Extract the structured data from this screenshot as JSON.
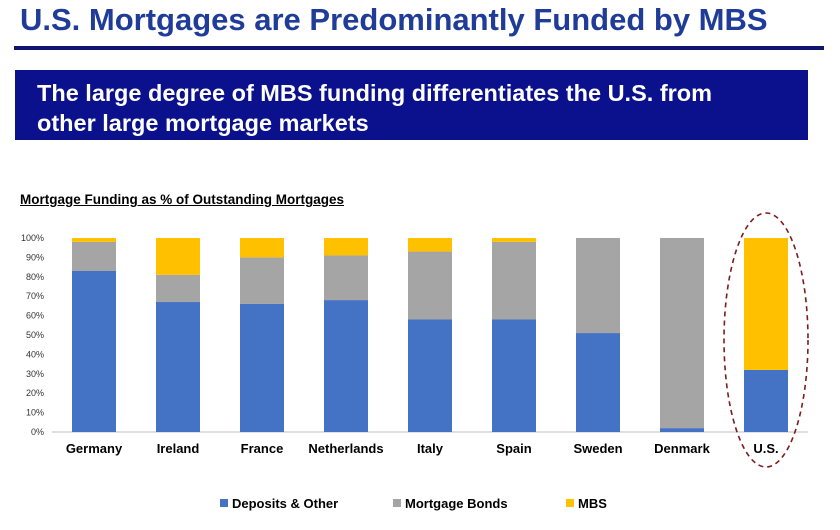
{
  "slide": {
    "title": "U.S. Mortgages are Predominantly Funded by MBS",
    "banner_line1": "The large degree of MBS funding differentiates the U.S. from",
    "banner_line2": "other large mortgage markets"
  },
  "colors": {
    "title": "#1f3c99",
    "banner_bg": "#0b118c",
    "deposits": "#4472c4",
    "bonds": "#a5a5a5",
    "mbs": "#ffc000",
    "highlight": "#7b1d1d"
  },
  "chart_data": {
    "type": "bar",
    "stacked": true,
    "title": "Mortgage Funding as % of Outstanding Mortgages",
    "xlabel": "",
    "ylabel": "",
    "ylim": [
      0,
      100
    ],
    "yticks": [
      "0%",
      "10%",
      "20%",
      "30%",
      "40%",
      "50%",
      "60%",
      "70%",
      "80%",
      "90%",
      "100%"
    ],
    "categories": [
      "Germany",
      "Ireland",
      "France",
      "Netherlands",
      "Italy",
      "Spain",
      "Sweden",
      "Denmark",
      "U.S."
    ],
    "series": [
      {
        "name": "Deposits & Other",
        "values": [
          83,
          67,
          66,
          68,
          58,
          58,
          51,
          2,
          32
        ]
      },
      {
        "name": "Mortgage Bonds",
        "values": [
          15,
          14,
          24,
          23,
          35,
          40,
          49,
          98,
          0
        ]
      },
      {
        "name": "MBS",
        "values": [
          2,
          19,
          10,
          9,
          7,
          2,
          0,
          0,
          68
        ]
      }
    ],
    "highlighted_category": "U.S.",
    "legend_position": "bottom"
  }
}
